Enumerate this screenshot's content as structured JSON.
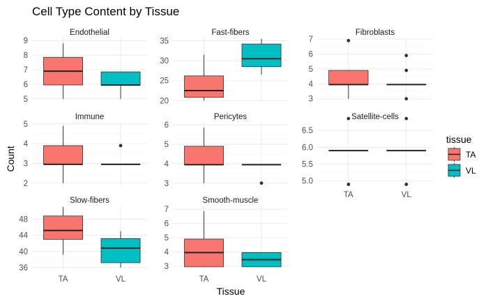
{
  "chart_data": {
    "type": "boxplot",
    "title": "Cell Type Content by Tissue",
    "xlabel": "Tissue",
    "ylabel": "Count",
    "categories": [
      "TA",
      "VL"
    ],
    "legend": {
      "title": "tissue",
      "placement": "right",
      "entries": [
        {
          "label": "TA",
          "color": "#F8766D"
        },
        {
          "label": "VL",
          "color": "#00BFC4"
        }
      ]
    },
    "facets": [
      {
        "name": "Endothelial",
        "ylim": [
          4.8,
          9.2
        ],
        "yticks": [
          5,
          6,
          7,
          8,
          9
        ],
        "boxes": [
          {
            "tissue": "TA",
            "min": 5,
            "q1": 5.95,
            "median": 6.9,
            "q3": 7.85,
            "max": 8.8,
            "outliers": []
          },
          {
            "tissue": "VL",
            "min": 5,
            "q1": 5.95,
            "median": 5.95,
            "q3": 6.85,
            "max": 6.85,
            "outliers": []
          }
        ]
      },
      {
        "name": "Fast-fibers",
        "ylim": [
          19.7,
          35.8
        ],
        "yticks": [
          20,
          25,
          30,
          35
        ],
        "boxes": [
          {
            "tissue": "TA",
            "min": 20,
            "q1": 20.8,
            "median": 22.5,
            "q3": 26.2,
            "max": 31.5,
            "outliers": []
          },
          {
            "tissue": "VL",
            "min": 26.5,
            "q1": 28.5,
            "median": 30.5,
            "q3": 34.2,
            "max": 35.5,
            "outliers": []
          }
        ]
      },
      {
        "name": "Fibroblasts",
        "ylim": [
          2.8,
          7.1
        ],
        "yticks": [
          3,
          4,
          5,
          6,
          7
        ],
        "boxes": [
          {
            "tissue": "TA",
            "min": 3,
            "q1": 3.95,
            "median": 3.95,
            "q3": 4.9,
            "max": 4.9,
            "outliers": [
              6.9
            ]
          },
          {
            "tissue": "VL",
            "min": 3.95,
            "q1": 3.95,
            "median": 3.95,
            "q3": 3.95,
            "max": 3.95,
            "outliers": [
              3,
              4.9,
              5.9
            ]
          }
        ]
      },
      {
        "name": "Immune",
        "ylim": [
          1.85,
          5.1
        ],
        "yticks": [
          2,
          3,
          4,
          5
        ],
        "boxes": [
          {
            "tissue": "TA",
            "min": 2,
            "q1": 2.95,
            "median": 2.95,
            "q3": 3.9,
            "max": 4.9,
            "outliers": []
          },
          {
            "tissue": "VL",
            "min": 2.95,
            "q1": 2.95,
            "median": 2.95,
            "q3": 2.95,
            "max": 2.95,
            "outliers": [
              3.9
            ]
          }
        ]
      },
      {
        "name": "Pericytes",
        "ylim": [
          2.85,
          6.15
        ],
        "yticks": [
          3,
          4,
          5,
          6
        ],
        "boxes": [
          {
            "tissue": "TA",
            "min": 3,
            "q1": 3.95,
            "median": 3.95,
            "q3": 4.9,
            "max": 5.85,
            "outliers": []
          },
          {
            "tissue": "VL",
            "min": 3.95,
            "q1": 3.95,
            "median": 3.95,
            "q3": 3.95,
            "max": 3.95,
            "outliers": [
              3
            ]
          }
        ]
      },
      {
        "name": "Satellite-cells",
        "ylim": [
          4.85,
          6.75
        ],
        "yticks": [
          5.0,
          5.5,
          6.0,
          6.5
        ],
        "yticklabels": [
          "5.0",
          "5.5",
          "6.0",
          "6.5"
        ],
        "boxes": [
          {
            "tissue": "TA",
            "min": 5.9,
            "q1": 5.9,
            "median": 5.9,
            "q3": 5.9,
            "max": 5.9,
            "outliers": [
              4.9,
              6.85
            ]
          },
          {
            "tissue": "VL",
            "min": 5.9,
            "q1": 5.9,
            "median": 5.9,
            "q3": 5.9,
            "max": 5.9,
            "outliers": [
              4.9,
              6.85
            ]
          }
        ]
      },
      {
        "name": "Slow-fibers",
        "ylim": [
          35.3,
          51.2
        ],
        "yticks": [
          36,
          40,
          44,
          48
        ],
        "boxes": [
          {
            "tissue": "TA",
            "min": 39.2,
            "q1": 43.0,
            "median": 45.2,
            "q3": 48.8,
            "max": 51.0,
            "outliers": []
          },
          {
            "tissue": "VL",
            "min": 36.0,
            "q1": 37.2,
            "median": 40.8,
            "q3": 43.2,
            "max": 45.0,
            "outliers": []
          }
        ]
      },
      {
        "name": "Smooth-muscle",
        "ylim": [
          2.7,
          7.2
        ],
        "yticks": [
          3,
          4,
          5,
          6,
          7
        ],
        "boxes": [
          {
            "tissue": "TA",
            "min": 2.95,
            "q1": 2.95,
            "median": 3.95,
            "q3": 4.9,
            "max": 6.85,
            "outliers": []
          },
          {
            "tissue": "VL",
            "min": 2.95,
            "q1": 2.95,
            "median": 3.45,
            "q3": 3.95,
            "max": 3.95,
            "outliers": []
          }
        ]
      }
    ]
  }
}
